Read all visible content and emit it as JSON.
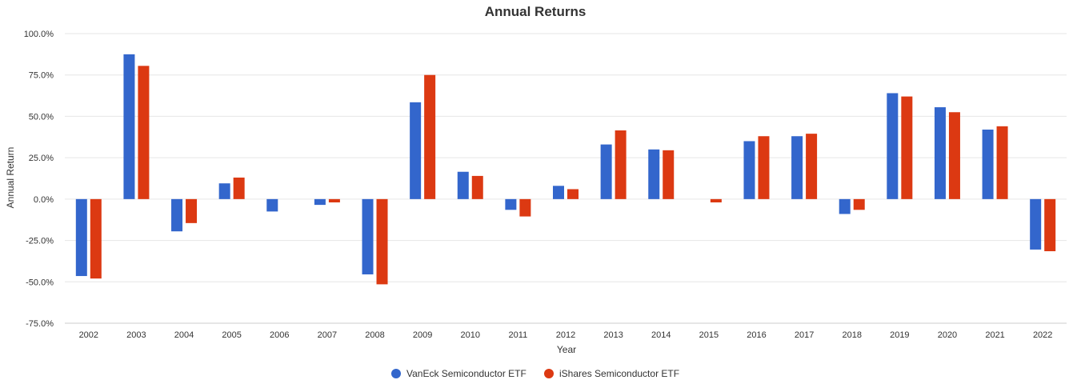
{
  "chart_data": {
    "type": "bar",
    "title": "Annual Returns",
    "xlabel": "Year",
    "ylabel": "Annual Return",
    "ylim": [
      -75,
      100
    ],
    "yticks": [
      100,
      75,
      50,
      25,
      0,
      -25,
      -50,
      -75
    ],
    "ytick_labels": [
      "100.0%",
      "75.0%",
      "50.0%",
      "25.0%",
      "0.0%",
      "-25.0%",
      "-50.0%",
      "-75.0%"
    ],
    "grid": true,
    "legend_position": "bottom-center",
    "categories": [
      "2002",
      "2003",
      "2004",
      "2005",
      "2006",
      "2007",
      "2008",
      "2009",
      "2010",
      "2011",
      "2012",
      "2013",
      "2014",
      "2015",
      "2016",
      "2017",
      "2018",
      "2019",
      "2020",
      "2021",
      "2022"
    ],
    "series": [
      {
        "name": "VanEck Semiconductor ETF",
        "color": "#3366cc",
        "values": [
          -46.5,
          87.5,
          -19.5,
          9.5,
          -7.5,
          -3.5,
          -45.5,
          58.5,
          16.5,
          -6.5,
          8.0,
          33.0,
          30.0,
          null,
          35.0,
          38.0,
          -9.0,
          64.0,
          55.5,
          42.0,
          -30.5
        ]
      },
      {
        "name": "iShares Semiconductor ETF",
        "color": "#dc3912",
        "values": [
          -48.0,
          80.5,
          -14.5,
          13.0,
          null,
          -2.0,
          -51.5,
          75.0,
          14.0,
          -10.5,
          6.0,
          41.5,
          29.5,
          -2.0,
          38.0,
          39.5,
          -6.5,
          62.0,
          52.5,
          44.0,
          -31.5
        ]
      }
    ]
  }
}
